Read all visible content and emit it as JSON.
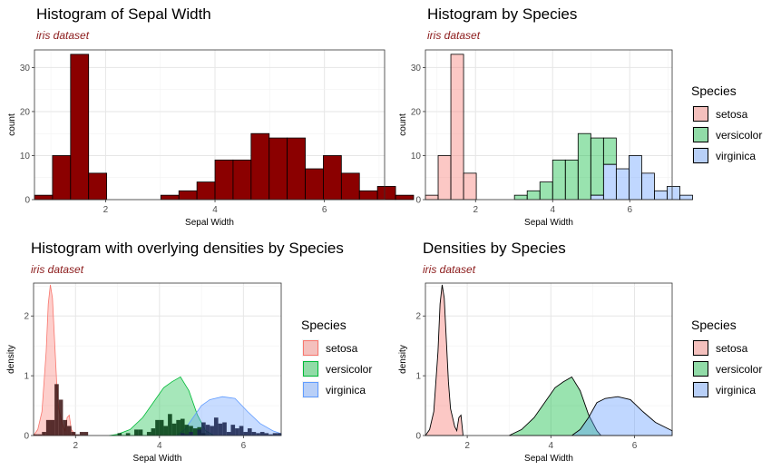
{
  "colors": {
    "darkred": "#8b0000",
    "subtitle": "#8b1a1a",
    "setosa": "#f8766d",
    "versicolor": "#00ba38",
    "virginica": "#619cff"
  },
  "legend": {
    "title": "Species",
    "items": [
      "setosa",
      "versicolor",
      "virginica"
    ]
  },
  "chart_data": [
    {
      "type": "bar",
      "title": "Histogram of Sepal Width",
      "subtitle": "iris dataset",
      "xlabel": "Sepal Width",
      "ylabel": "count",
      "xlim": [
        0.7,
        7.1
      ],
      "ylim": [
        0,
        34
      ],
      "xticks": [
        2,
        4,
        6
      ],
      "yticks": [
        0,
        10,
        20,
        30
      ],
      "bin_start": 0.7,
      "bin_width": 0.33,
      "values": [
        1,
        10,
        33,
        6,
        0,
        0,
        0,
        1,
        2,
        4,
        9,
        9,
        15,
        14,
        14,
        7,
        10,
        6,
        2,
        3,
        1
      ],
      "fill": "#8b0000"
    },
    {
      "type": "bar",
      "title": "Histogram by Species",
      "subtitle": "iris dataset",
      "xlabel": "Sepal Width",
      "ylabel": "count",
      "xlim": [
        0.7,
        7.1
      ],
      "ylim": [
        0,
        34
      ],
      "xticks": [
        2,
        4,
        6
      ],
      "yticks": [
        0,
        10,
        20,
        30
      ],
      "bin_start": 0.7,
      "bin_width": 0.33,
      "series": [
        {
          "name": "setosa",
          "values": [
            1,
            10,
            33,
            6,
            0,
            0,
            0,
            0,
            0,
            0,
            0,
            0,
            0,
            0,
            0,
            0,
            0,
            0,
            0,
            0,
            0
          ]
        },
        {
          "name": "versicolor",
          "values": [
            0,
            0,
            0,
            0,
            0,
            0,
            0,
            1,
            2,
            4,
            9,
            9,
            15,
            13,
            6,
            0,
            0,
            0,
            0,
            0,
            0
          ]
        },
        {
          "name": "virginica",
          "values": [
            0,
            0,
            0,
            0,
            0,
            0,
            0,
            0,
            0,
            0,
            0,
            0,
            0,
            1,
            8,
            7,
            10,
            6,
            2,
            3,
            1
          ]
        }
      ],
      "legend": "right"
    },
    {
      "type": "area",
      "title": "Histogram with overlying densities by Species",
      "subtitle": "iris dataset",
      "xlabel": "Sepal Width",
      "ylabel": "density",
      "xlim": [
        1,
        6.9
      ],
      "ylim": [
        0,
        2.55
      ],
      "xticks": [
        2,
        4,
        6
      ],
      "yticks": [
        0,
        1,
        2
      ],
      "density": [
        {
          "name": "setosa",
          "x": [
            1.0,
            1.1,
            1.2,
            1.3,
            1.35,
            1.4,
            1.45,
            1.5,
            1.55,
            1.6,
            1.7,
            1.75,
            1.8,
            1.85,
            1.9,
            2.0
          ],
          "y": [
            0,
            0.1,
            0.4,
            1.4,
            2.2,
            2.52,
            2.3,
            1.6,
            0.9,
            0.45,
            0.15,
            0.08,
            0.3,
            0.34,
            0.1,
            0
          ]
        },
        {
          "name": "versicolor",
          "x": [
            2.8,
            3.0,
            3.3,
            3.6,
            3.9,
            4.1,
            4.3,
            4.5,
            4.7,
            4.9,
            5.1,
            5.3
          ],
          "y": [
            0,
            0.02,
            0.1,
            0.3,
            0.6,
            0.8,
            0.9,
            0.98,
            0.75,
            0.35,
            0.08,
            0
          ]
        },
        {
          "name": "virginica",
          "x": [
            4.4,
            4.6,
            4.8,
            5.0,
            5.2,
            5.5,
            5.8,
            6.1,
            6.4,
            6.7,
            6.9
          ],
          "y": [
            0,
            0.1,
            0.3,
            0.5,
            0.6,
            0.65,
            0.62,
            0.4,
            0.2,
            0.08,
            0.03
          ]
        }
      ],
      "histogram_bin_width": 0.1,
      "histogram": [
        {
          "name": "setosa",
          "start": 1.0,
          "values": [
            0.02,
            0.02,
            0.06,
            0.26,
            0.26,
            0.86,
            0.6,
            0.26,
            0.16,
            0.06,
            0.02,
            0.06,
            0.06
          ]
        },
        {
          "name": "versicolor",
          "start": 3.0,
          "values": [
            0.04,
            0,
            0.04,
            0,
            0.1,
            0.1,
            0,
            0.06,
            0.12,
            0.26,
            0.26,
            0.16,
            0.36,
            0.2,
            0.26,
            0.28,
            0.18,
            0.16,
            0.12,
            0.14,
            0.04
          ]
        },
        {
          "name": "virginica",
          "start": 4.5,
          "values": [
            0.04,
            0.02,
            0.06,
            0,
            0.1,
            0.22,
            0.18,
            0.16,
            0.3,
            0.2,
            0.22,
            0.06,
            0.18,
            0.12,
            0.16,
            0.06,
            0.12,
            0.06,
            0.04,
            0.06,
            0.04,
            0.02,
            0.04,
            0.04
          ]
        }
      ],
      "legend": "right"
    },
    {
      "type": "area",
      "title": "Densities by Species",
      "subtitle": "iris dataset",
      "xlabel": "Sepal Width",
      "ylabel": "density",
      "xlim": [
        1,
        6.9
      ],
      "ylim": [
        0,
        2.55
      ],
      "xticks": [
        2,
        4,
        6
      ],
      "yticks": [
        0,
        1,
        2
      ],
      "series": [
        {
          "name": "setosa",
          "x": [
            1.0,
            1.1,
            1.2,
            1.3,
            1.35,
            1.4,
            1.45,
            1.5,
            1.55,
            1.6,
            1.7,
            1.75,
            1.8,
            1.85,
            1.9
          ],
          "y": [
            0,
            0.1,
            0.4,
            1.4,
            2.2,
            2.52,
            2.3,
            1.6,
            0.9,
            0.45,
            0.15,
            0.08,
            0.3,
            0.34,
            0
          ]
        },
        {
          "name": "versicolor",
          "x": [
            3.0,
            3.3,
            3.6,
            3.9,
            4.1,
            4.3,
            4.5,
            4.7,
            4.9,
            5.1,
            5.2
          ],
          "y": [
            0,
            0.1,
            0.3,
            0.6,
            0.8,
            0.9,
            0.98,
            0.75,
            0.35,
            0.08,
            0
          ]
        },
        {
          "name": "virginica",
          "x": [
            4.5,
            4.7,
            4.9,
            5.1,
            5.3,
            5.6,
            5.9,
            6.2,
            6.5,
            6.9
          ],
          "y": [
            0,
            0.1,
            0.3,
            0.55,
            0.62,
            0.65,
            0.6,
            0.4,
            0.22,
            0.08
          ]
        }
      ],
      "legend": "right"
    }
  ]
}
